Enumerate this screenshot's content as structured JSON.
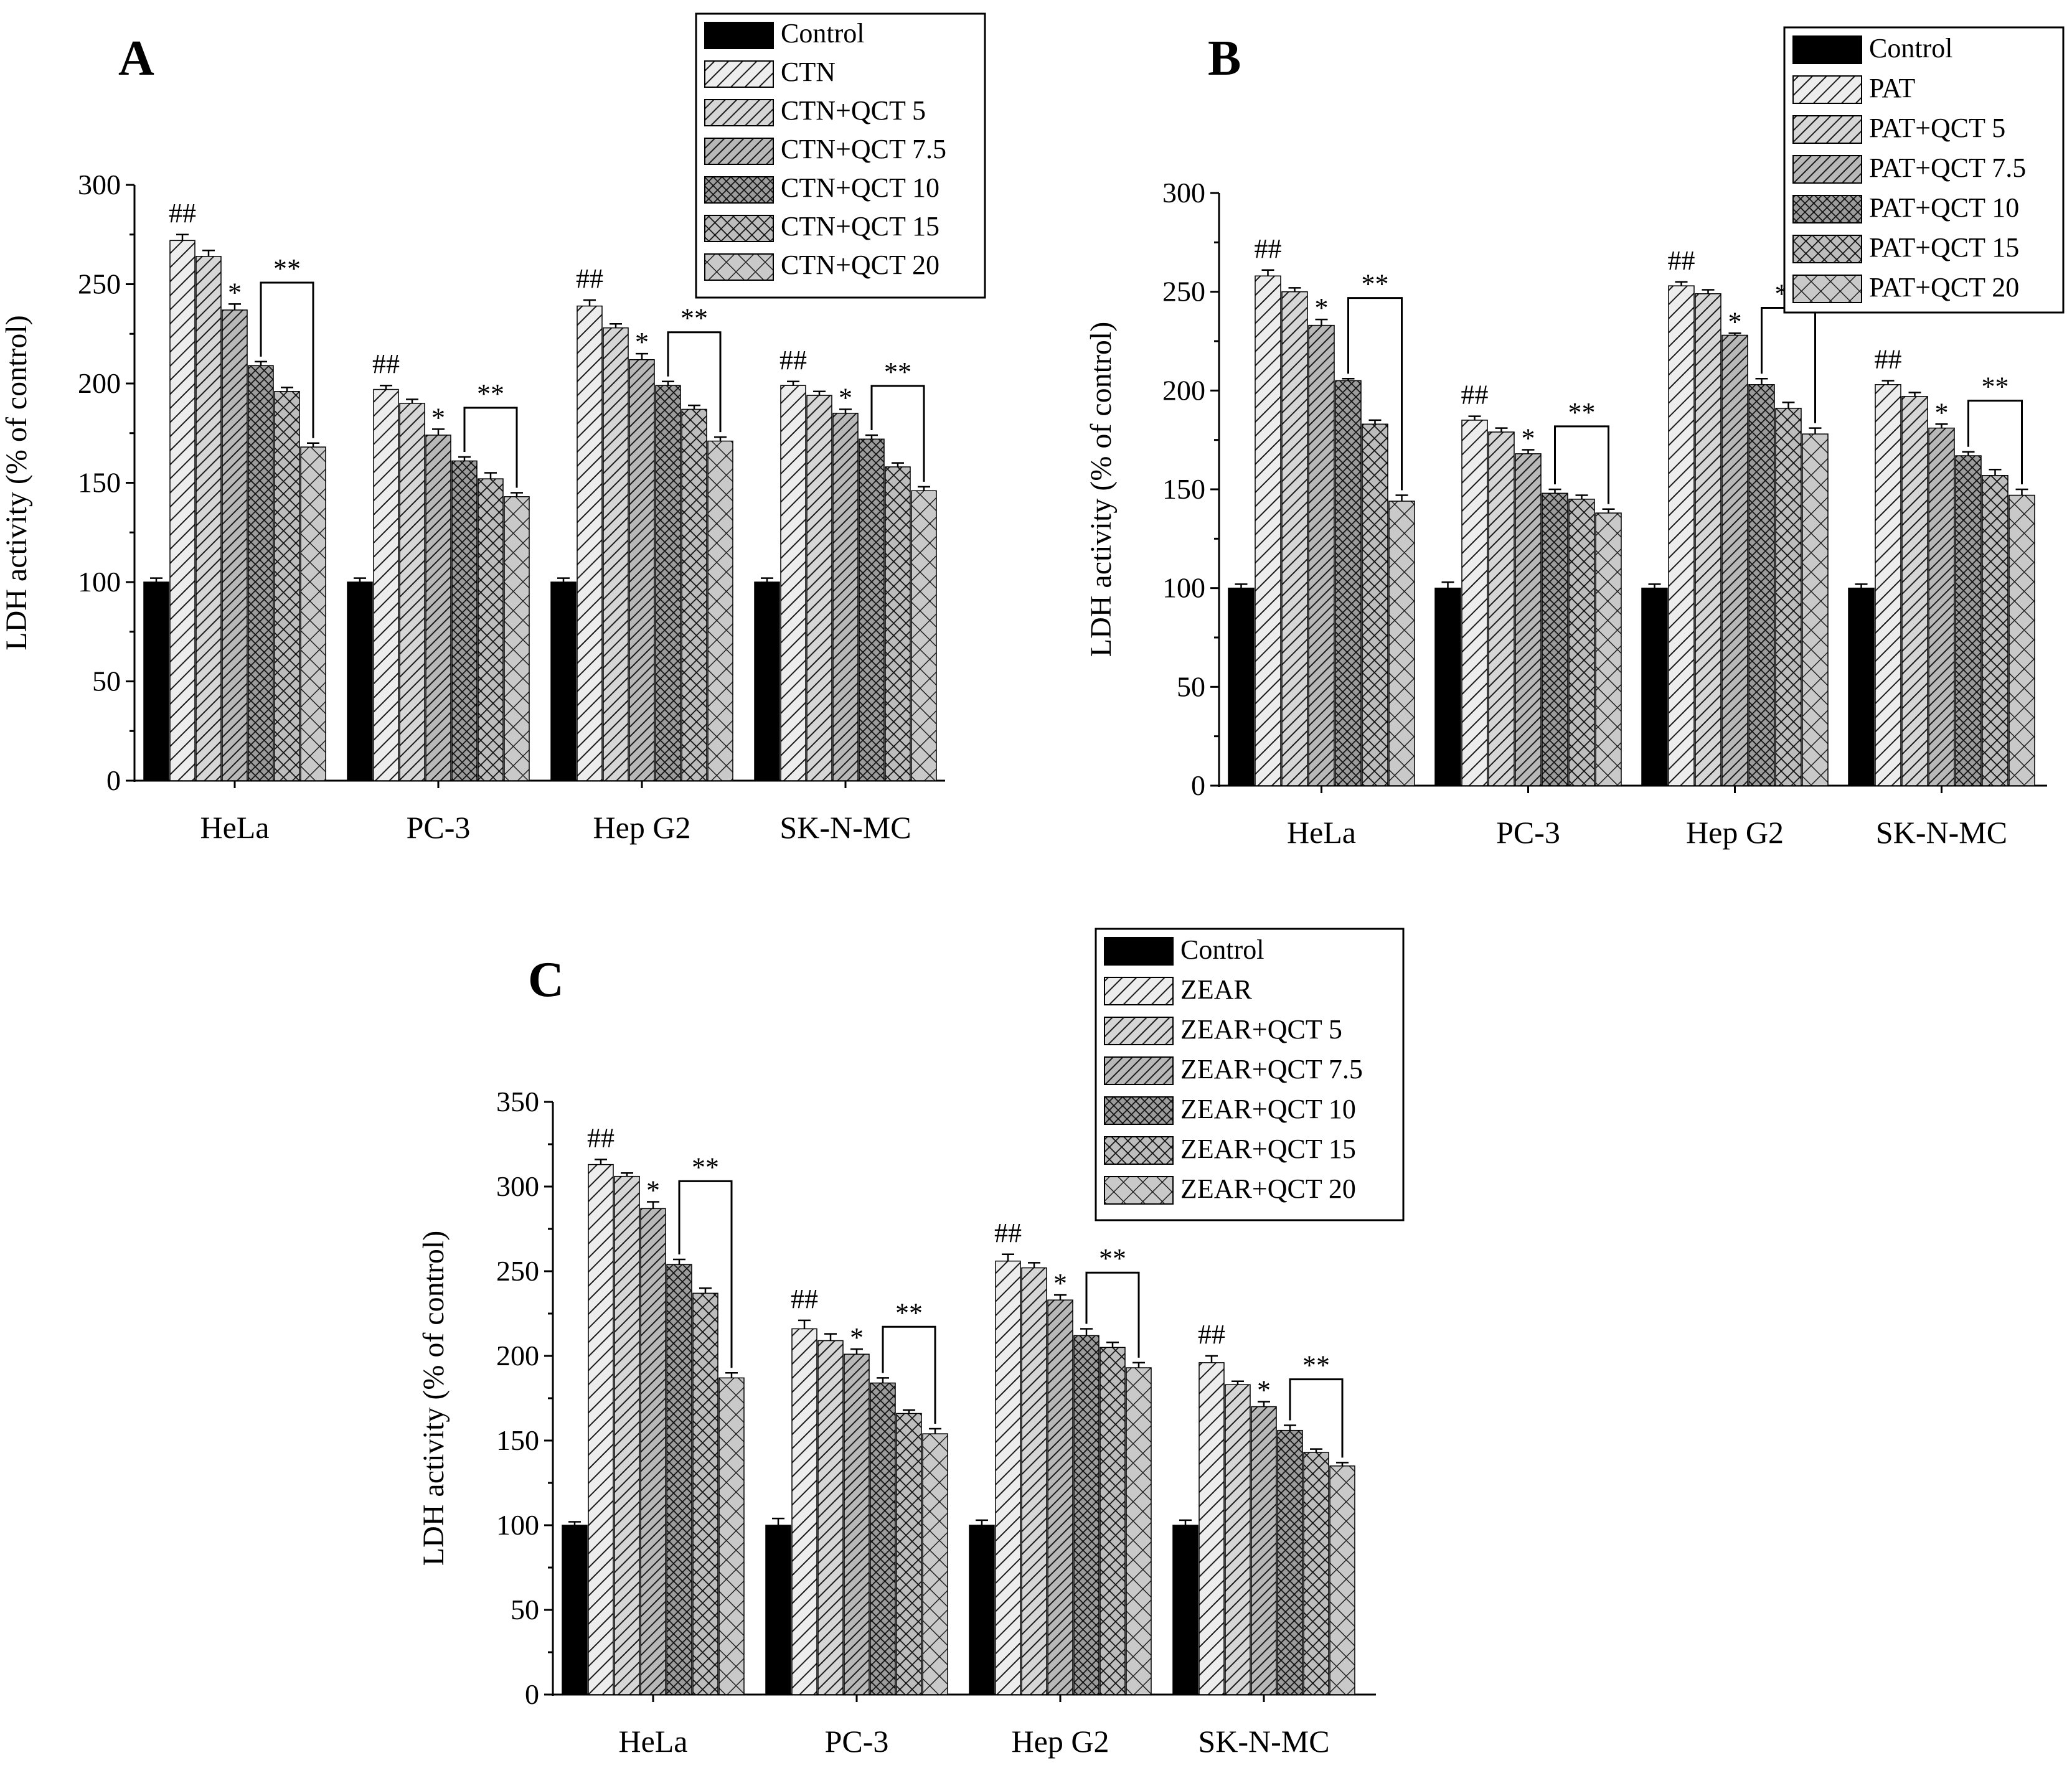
{
  "chart_data": [
    {
      "type": "bar",
      "panel": "A",
      "ylabel": "LDH activity (% of control)",
      "xlabel": "",
      "ylim": [
        0,
        300
      ],
      "yticks": [
        0,
        50,
        100,
        150,
        200,
        250,
        300
      ],
      "categories": [
        "HeLa",
        "PC-3",
        "Hep G2",
        "SK-N-MC"
      ],
      "series": [
        {
          "name": "Control",
          "values": [
            100,
            100,
            100,
            100
          ],
          "errors": [
            2,
            2,
            2,
            2
          ]
        },
        {
          "name": "CTN",
          "values": [
            272,
            197,
            239,
            199
          ],
          "errors": [
            3,
            2,
            3,
            2
          ]
        },
        {
          "name": "CTN+QCT 5",
          "values": [
            264,
            190,
            228,
            194
          ],
          "errors": [
            3,
            2,
            2,
            2
          ]
        },
        {
          "name": "CTN+QCT 7.5",
          "values": [
            237,
            174,
            212,
            185
          ],
          "errors": [
            3,
            3,
            3,
            2
          ]
        },
        {
          "name": "CTN+QCT 10",
          "values": [
            209,
            161,
            199,
            172
          ],
          "errors": [
            2,
            2,
            2,
            2
          ]
        },
        {
          "name": "CTN+QCT 15",
          "values": [
            196,
            152,
            187,
            158
          ],
          "errors": [
            2,
            3,
            2,
            2
          ]
        },
        {
          "name": "CTN+QCT 20",
          "values": [
            168,
            143,
            171,
            146
          ],
          "errors": [
            2,
            2,
            2,
            2
          ]
        }
      ],
      "legend": "top-right",
      "annotations": {
        "hash": "##",
        "single": "*",
        "double": "**"
      }
    },
    {
      "type": "bar",
      "panel": "B",
      "ylabel": "LDH activity (% of control)",
      "xlabel": "",
      "ylim": [
        0,
        300
      ],
      "yticks": [
        0,
        50,
        100,
        150,
        200,
        250,
        300
      ],
      "categories": [
        "HeLa",
        "PC-3",
        "Hep G2",
        "SK-N-MC"
      ],
      "series": [
        {
          "name": "Control",
          "values": [
            100,
            100,
            100,
            100
          ],
          "errors": [
            2,
            3,
            2,
            2
          ]
        },
        {
          "name": "PAT",
          "values": [
            258,
            185,
            253,
            203
          ],
          "errors": [
            3,
            2,
            2,
            2
          ]
        },
        {
          "name": "PAT+QCT 5",
          "values": [
            250,
            179,
            249,
            197
          ],
          "errors": [
            2,
            2,
            2,
            2
          ]
        },
        {
          "name": "PAT+QCT 7.5",
          "values": [
            233,
            168,
            228,
            181
          ],
          "errors": [
            3,
            2,
            1,
            2
          ]
        },
        {
          "name": "PAT+QCT 10",
          "values": [
            205,
            148,
            203,
            167
          ],
          "errors": [
            1,
            2,
            3,
            2
          ]
        },
        {
          "name": "PAT+QCT 15",
          "values": [
            183,
            145,
            191,
            157
          ],
          "errors": [
            2,
            2,
            3,
            3
          ]
        },
        {
          "name": "PAT+QCT 20",
          "values": [
            144,
            138,
            178,
            147
          ],
          "errors": [
            3,
            2,
            3,
            3
          ]
        }
      ],
      "legend": "top-right",
      "annotations": {
        "hash": "##",
        "single": "*",
        "double": "**"
      }
    },
    {
      "type": "bar",
      "panel": "C",
      "ylabel": "LDH activity (% of control)",
      "xlabel": "",
      "ylim": [
        0,
        350
      ],
      "yticks": [
        0,
        50,
        100,
        150,
        200,
        250,
        300,
        350
      ],
      "categories": [
        "HeLa",
        "PC-3",
        "Hep G2",
        "SK-N-MC"
      ],
      "series": [
        {
          "name": "Control",
          "values": [
            100,
            100,
            100,
            100
          ],
          "errors": [
            2,
            4,
            3,
            3
          ]
        },
        {
          "name": "ZEAR",
          "values": [
            313,
            216,
            256,
            196
          ],
          "errors": [
            3,
            5,
            4,
            4
          ]
        },
        {
          "name": "ZEAR+QCT 5",
          "values": [
            306,
            209,
            252,
            183
          ],
          "errors": [
            2,
            4,
            3,
            2
          ]
        },
        {
          "name": "ZEAR+QCT 7.5",
          "values": [
            287,
            201,
            233,
            170
          ],
          "errors": [
            4,
            3,
            3,
            3
          ]
        },
        {
          "name": "ZEAR+QCT 10",
          "values": [
            254,
            184,
            212,
            156
          ],
          "errors": [
            3,
            3,
            4,
            3
          ]
        },
        {
          "name": "ZEAR+QCT 15",
          "values": [
            237,
            166,
            205,
            143
          ],
          "errors": [
            3,
            2,
            3,
            2
          ]
        },
        {
          "name": "ZEAR+QCT 20",
          "values": [
            187,
            154,
            193,
            135
          ],
          "errors": [
            3,
            3,
            3,
            2
          ]
        }
      ],
      "legend": "top-right",
      "annotations": {
        "hash": "##",
        "single": "*",
        "double": "**"
      }
    }
  ],
  "colors": {
    "control_fill": "#000000",
    "bar_fill_light": "#d9d9d9",
    "bar_fill_mid": "#bfbfbf",
    "hatch_stroke": "#1a1a1a",
    "axis": "#000000"
  }
}
